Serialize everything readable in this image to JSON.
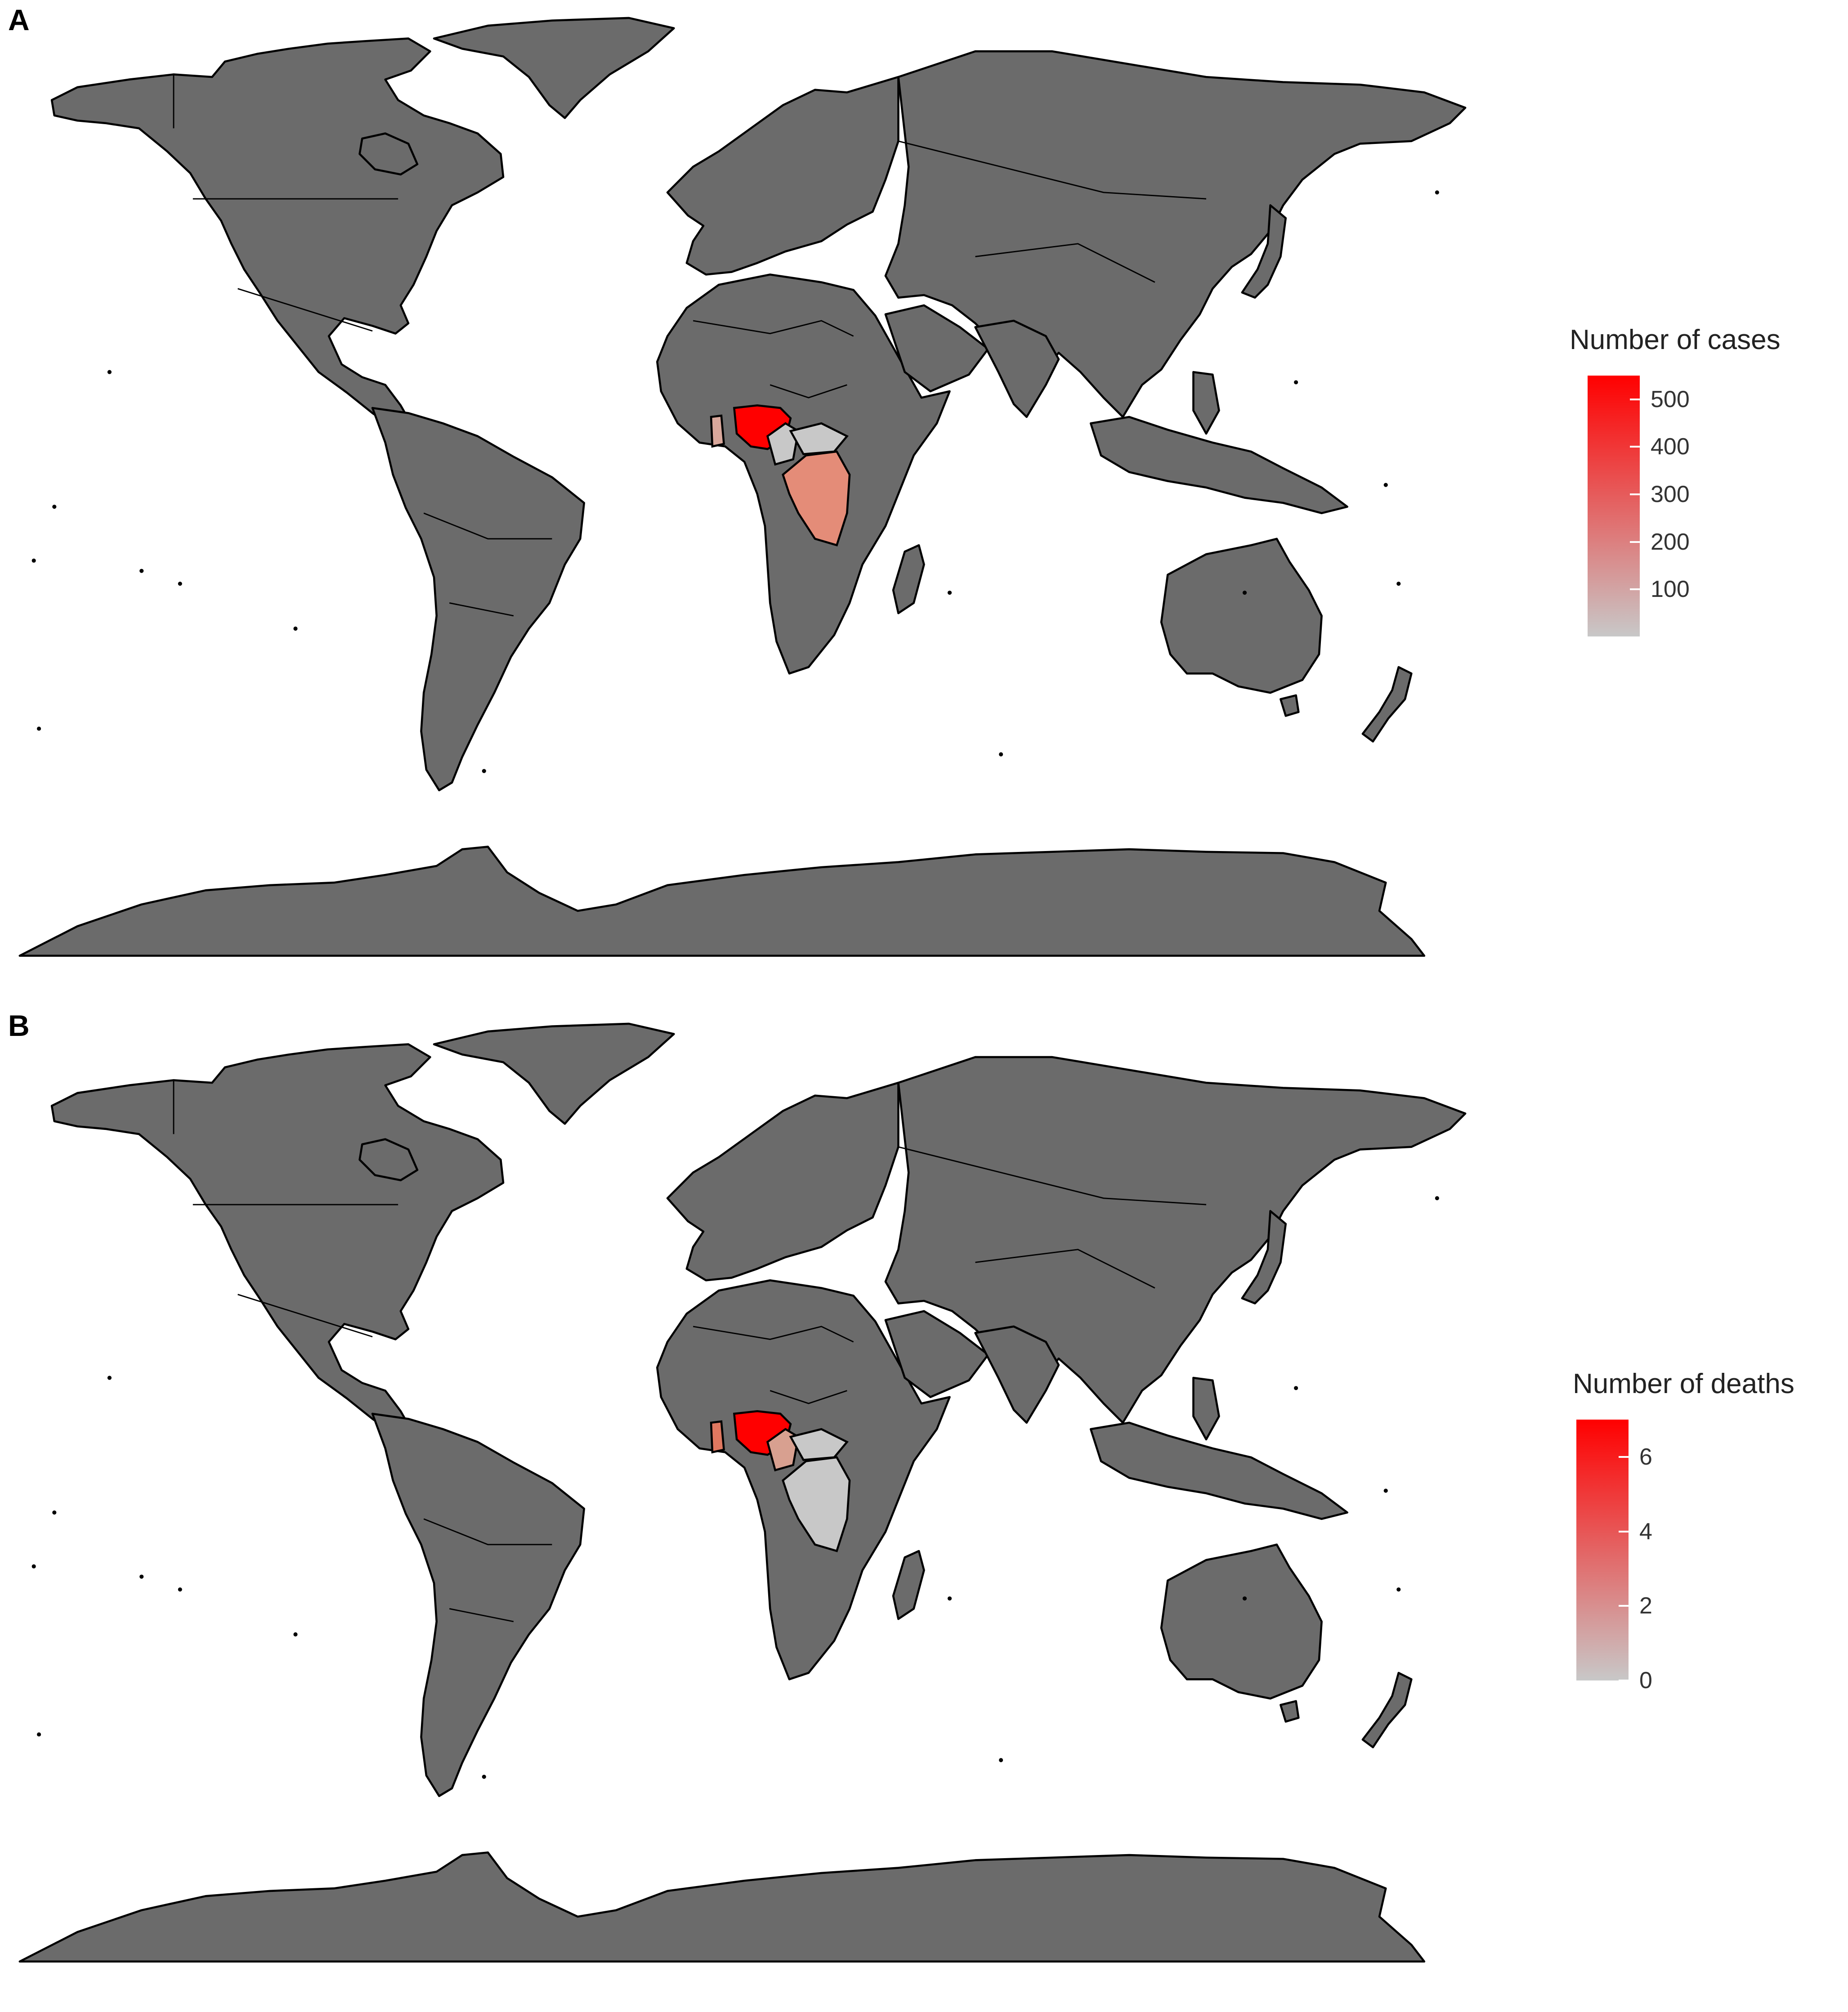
{
  "panels": [
    {
      "label": "A",
      "legend": {
        "title": "Number of cases",
        "ticks": [
          "500",
          "400",
          "300",
          "200",
          "100"
        ],
        "tick_values": [
          500,
          400,
          300,
          200,
          100
        ],
        "min": 1,
        "max": 550,
        "low_color": "#c8c8c8",
        "high_color": "#ff0000"
      },
      "highlighted_regions": [
        {
          "region": "Nigeria",
          "color": "#ff0000"
        },
        {
          "region": "Democratic Republic of the Congo",
          "color": "#e48c78"
        },
        {
          "region": "Ghana",
          "color": "#d9a89c"
        },
        {
          "region": "Cameroon",
          "color": "#c8c8c8"
        },
        {
          "region": "Central African Republic",
          "color": "#c8c8c8"
        }
      ]
    },
    {
      "label": "B",
      "legend": {
        "title": "Number of deaths",
        "ticks": [
          "6",
          "4",
          "2",
          "0"
        ],
        "tick_values": [
          6,
          4,
          2,
          0
        ],
        "min": 0,
        "max": 7,
        "low_color": "#c8c8c8",
        "high_color": "#ff0000"
      },
      "highlighted_regions": [
        {
          "region": "Nigeria",
          "color": "#ff0000"
        },
        {
          "region": "Ghana",
          "color": "#e07860"
        },
        {
          "region": "Cameroon",
          "color": "#d8a090"
        },
        {
          "region": "Democratic Republic of the Congo",
          "color": "#c8c8c8"
        },
        {
          "region": "Central African Republic",
          "color": "#c8c8c8"
        }
      ]
    }
  ],
  "colors": {
    "land": "#6b6b6b",
    "border": "#000000",
    "ocean": "#ffffff"
  }
}
